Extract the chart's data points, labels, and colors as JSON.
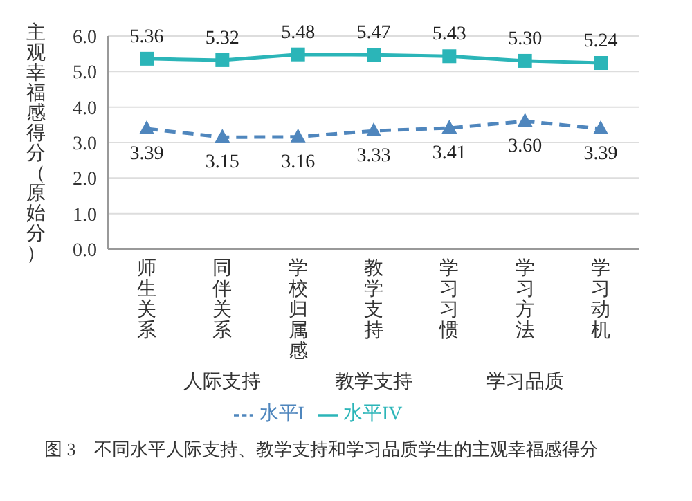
{
  "chart_data": {
    "type": "line",
    "ylabel": "主观幸福感得分（原始分）",
    "categories": [
      "师生关系",
      "同伴关系",
      "学校归属感",
      "教学支持",
      "学习习惯",
      "学习方法",
      "学习动机"
    ],
    "series": [
      {
        "name": "水平I",
        "color": "#4f86bd",
        "values": [
          3.39,
          3.15,
          3.16,
          3.33,
          3.41,
          3.6,
          3.39
        ],
        "value_labels": [
          "3.39",
          "3.15",
          "3.16",
          "3.33",
          "3.41",
          "3.60",
          "3.39"
        ],
        "marker": "triangle",
        "line_style": "dashed"
      },
      {
        "name": "水平IV",
        "color": "#2bb5b8",
        "values": [
          5.36,
          5.32,
          5.48,
          5.47,
          5.43,
          5.3,
          5.24
        ],
        "value_labels": [
          "5.36",
          "5.32",
          "5.48",
          "5.47",
          "5.43",
          "5.30",
          "5.24"
        ],
        "marker": "square",
        "line_style": "solid"
      }
    ],
    "ylim": [
      0,
      6
    ],
    "yticks": [
      {
        "value": 0,
        "label": "0.0"
      },
      {
        "value": 1,
        "label": "1.0"
      },
      {
        "value": 2,
        "label": "2.0"
      },
      {
        "value": 3,
        "label": "3.0"
      },
      {
        "value": 4,
        "label": "4.0"
      },
      {
        "value": 5,
        "label": "5.0"
      },
      {
        "value": 6,
        "label": "6.0"
      }
    ],
    "grid": "y",
    "legend": "bottom",
    "annotations": [
      "人际支持",
      "教学支持",
      "学习品质",
      "图 3　不同水平人际支持、教学支持和学习品质学生的主观幸福感得分"
    ]
  }
}
